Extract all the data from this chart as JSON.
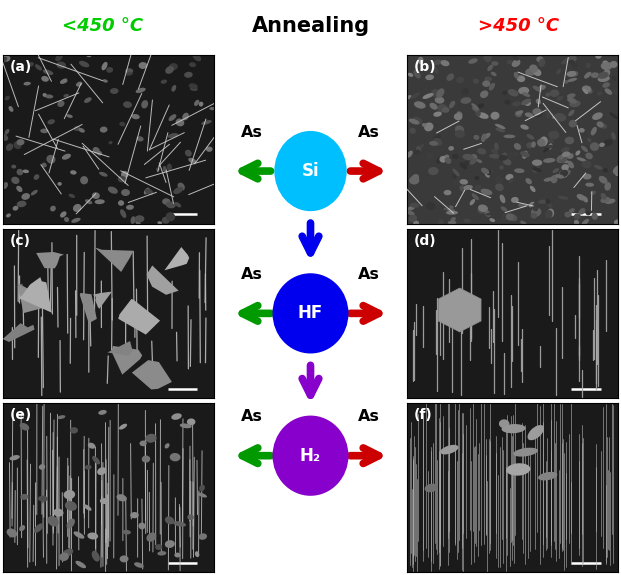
{
  "title_center": "Annealing",
  "title_left": "<450 °C",
  "title_right": ">450 °C",
  "title_left_color": "#00cc00",
  "title_right_color": "#ff0000",
  "title_center_color": "#000000",
  "nodes": [
    {
      "label": "Si",
      "color": "#00bfff",
      "text_color": "white",
      "fontsize": 12
    },
    {
      "label": "HF",
      "color": "#0000ee",
      "text_color": "white",
      "fontsize": 12
    },
    {
      "label": "H₂",
      "color": "#8800cc",
      "text_color": "white",
      "fontsize": 12
    }
  ],
  "arrow_blue": "#0000ee",
  "arrow_purple": "#8800cc",
  "arrow_green": "#009900",
  "arrow_red": "#cc0000",
  "as_label_color": "#000000",
  "fig_width": 6.21,
  "fig_height": 5.75,
  "dpi": 100
}
